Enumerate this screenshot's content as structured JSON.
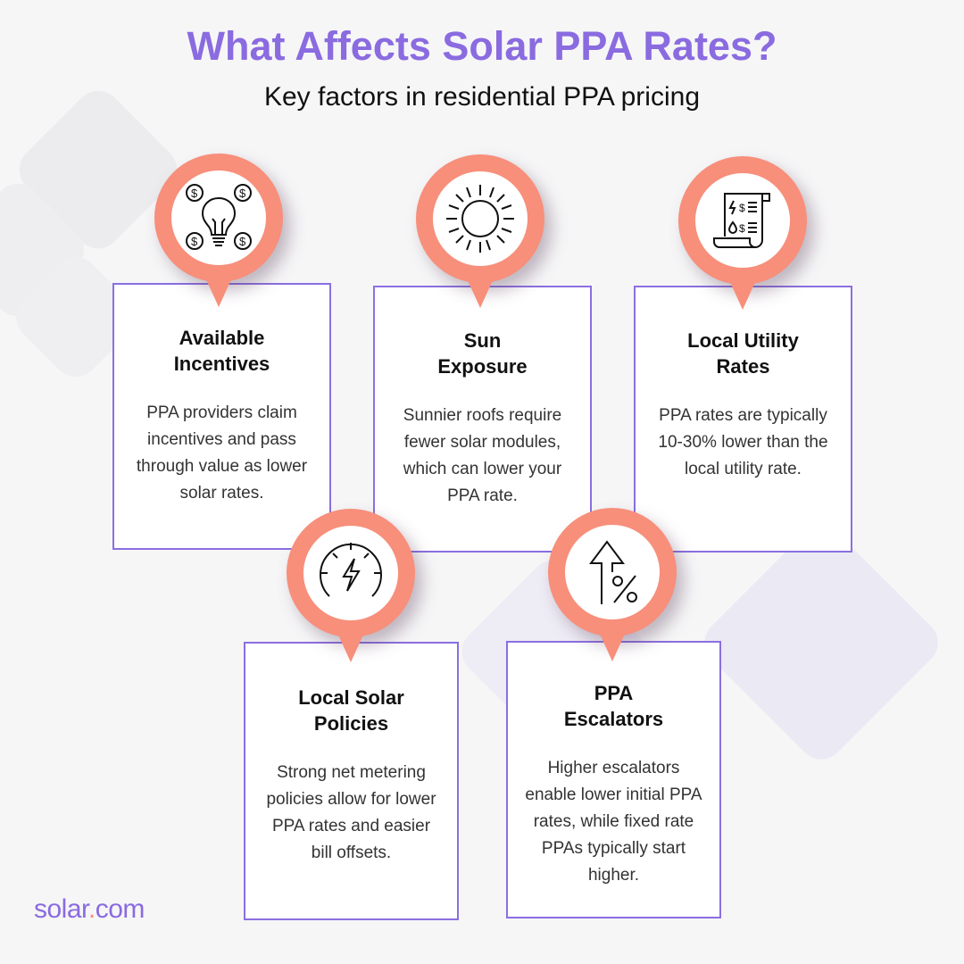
{
  "header": {
    "title": "What Affects Solar PPA Rates?",
    "subtitle": "Key factors in residential PPA pricing"
  },
  "colors": {
    "accent": "#8a6be0",
    "pin": "#f78f7b",
    "border": "#8b6fe0"
  },
  "cards": [
    {
      "title": "Available Incentives",
      "body": "PPA providers claim incentives and pass through value as lower solar rates.",
      "icon": "lightbulb-dollar-icon"
    },
    {
      "title": "Sun Exposure",
      "body": "Sunnier roofs require fewer solar modules, which can lower your PPA rate.",
      "icon": "sun-icon"
    },
    {
      "title": "Local Utility Rates",
      "body": "PPA rates are typically 10-30% lower than the local utility rate.",
      "icon": "utility-bill-icon"
    },
    {
      "title": "Local Solar Policies",
      "body": "Strong net metering policies allow for lower PPA rates and easier bill offsets.",
      "icon": "gauge-lightning-icon"
    },
    {
      "title": "PPA Escalators",
      "body": "Higher escalators enable lower initial PPA rates, while fixed rate PPAs typically start higher.",
      "icon": "arrow-up-percent-icon"
    }
  ],
  "logo": {
    "name": "solar",
    "dot": ".",
    "suffix": "com"
  }
}
